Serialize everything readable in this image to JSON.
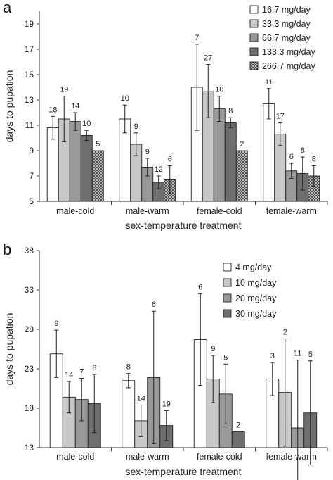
{
  "chart_data": [
    {
      "panel": "a",
      "type": "bar",
      "xlabel": "sex-temperature treatment",
      "ylabel": "days to pupation",
      "ylim": [
        5,
        20
      ],
      "yticks": [
        5,
        7,
        9,
        11,
        13,
        15,
        17,
        19
      ],
      "categories": [
        "male-cold",
        "male-warm",
        "female-cold",
        "female-warm"
      ],
      "legend_position": "top-right",
      "series": [
        {
          "name": "16.7 mg/day",
          "color": "#ffffff",
          "values": [
            10.8,
            11.5,
            14.0,
            12.7
          ],
          "errors": [
            0.9,
            1.1,
            3.4,
            1.2
          ],
          "labels": [
            "18",
            "10",
            "7",
            "11"
          ]
        },
        {
          "name": "33.3 mg/day",
          "color": "#c8c8c8",
          "values": [
            11.5,
            9.5,
            13.7,
            10.3
          ],
          "errors": [
            1.8,
            0.9,
            2.1,
            0.9
          ],
          "labels": [
            "19",
            "9",
            "27",
            "17"
          ]
        },
        {
          "name": "66.7 mg/day",
          "color": "#999999",
          "values": [
            11.3,
            7.7,
            12.3,
            7.4
          ],
          "errors": [
            0.7,
            0.7,
            1.0,
            0.6
          ],
          "labels": [
            "14",
            "9",
            "10",
            "6"
          ]
        },
        {
          "name": "133.3 mg/day",
          "color": "#6e6e6e",
          "values": [
            10.2,
            6.5,
            11.2,
            7.2
          ],
          "errors": [
            0.4,
            0.5,
            0.4,
            1.3
          ],
          "labels": [
            "10",
            "12",
            "8",
            "8"
          ]
        },
        {
          "name": "266.7 mg/day",
          "color": "#d8d8d8",
          "pattern": "crosshatch",
          "values": [
            9.0,
            6.7,
            9.0,
            7.0
          ],
          "errors": [
            0.0,
            1.1,
            0.0,
            0.8
          ],
          "labels": [
            "5",
            "6",
            "2",
            "8"
          ]
        }
      ]
    },
    {
      "panel": "b",
      "type": "bar",
      "xlabel": "sex-temperature treatment",
      "ylabel": "days to pupation",
      "ylim": [
        13,
        38
      ],
      "yticks": [
        13,
        18,
        23,
        28,
        33,
        38
      ],
      "categories": [
        "male-cold",
        "male-warm",
        "female-cold",
        "female-warm"
      ],
      "legend_position": "top-right",
      "series": [
        {
          "name": "4 mg/day",
          "color": "#ffffff",
          "values": [
            24.9,
            21.5,
            26.7,
            21.7
          ],
          "errors": [
            3.0,
            0.9,
            5.8,
            2.1
          ],
          "labels": [
            "9",
            "8",
            "6",
            "3"
          ]
        },
        {
          "name": "10 mg/day",
          "color": "#c8c8c8",
          "values": [
            19.4,
            16.4,
            21.7,
            20.0
          ],
          "errors": [
            2.0,
            2.0,
            3.0,
            6.8
          ],
          "labels": [
            "14",
            "14",
            "9",
            "2"
          ]
        },
        {
          "name": "20 mg/day",
          "color": "#999999",
          "values": [
            19.1,
            21.9,
            19.8,
            15.5
          ],
          "errors": [
            2.7,
            8.4,
            3.8,
            8.6
          ],
          "labels": [
            "7",
            "6",
            "5",
            "11"
          ]
        },
        {
          "name": "30 mg/day",
          "color": "#6e6e6e",
          "values": [
            18.6,
            15.8,
            15.0,
            17.4
          ],
          "errors": [
            3.7,
            1.9,
            0.0,
            6.6
          ],
          "labels": [
            "8",
            "19",
            "2",
            "5"
          ]
        }
      ]
    }
  ]
}
